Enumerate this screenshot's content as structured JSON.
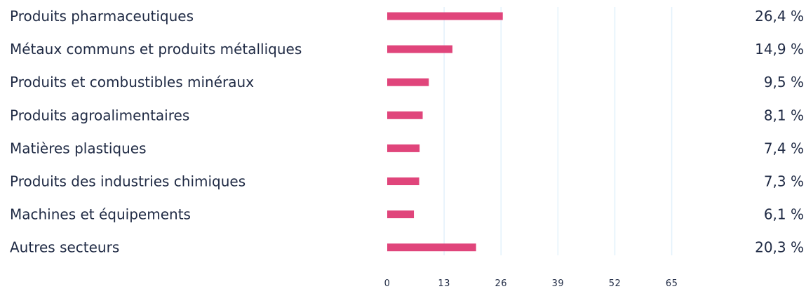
{
  "chart_data": {
    "type": "bar",
    "orientation": "horizontal",
    "categories": [
      "Produits pharmaceutiques",
      "Métaux communs et produits métalliques",
      "Produits et combustibles minéraux",
      "Produits agroalimentaires",
      "Matières plastiques",
      "Produits des industries chimiques",
      "Machines et équipements",
      "Autres secteurs"
    ],
    "values": [
      26.4,
      14.9,
      9.5,
      8.1,
      7.4,
      7.3,
      6.1,
      20.3
    ],
    "value_labels": [
      "26,4 %",
      "14,9 %",
      "9,5 %",
      "8,1 %",
      "7,4 %",
      "7,3 %",
      "6,1 %",
      "20,3 %"
    ],
    "xticks": [
      0,
      13,
      26,
      39,
      52,
      65
    ],
    "xtick_labels": [
      "0",
      "13",
      "26",
      "39",
      "52",
      "65"
    ],
    "xlim": [
      0,
      78
    ],
    "grid": true,
    "bar_color": "#e0457b",
    "grid_color": "#e2f1fb",
    "text_color": "#1f2a44",
    "title": "",
    "xlabel": "",
    "ylabel": ""
  }
}
